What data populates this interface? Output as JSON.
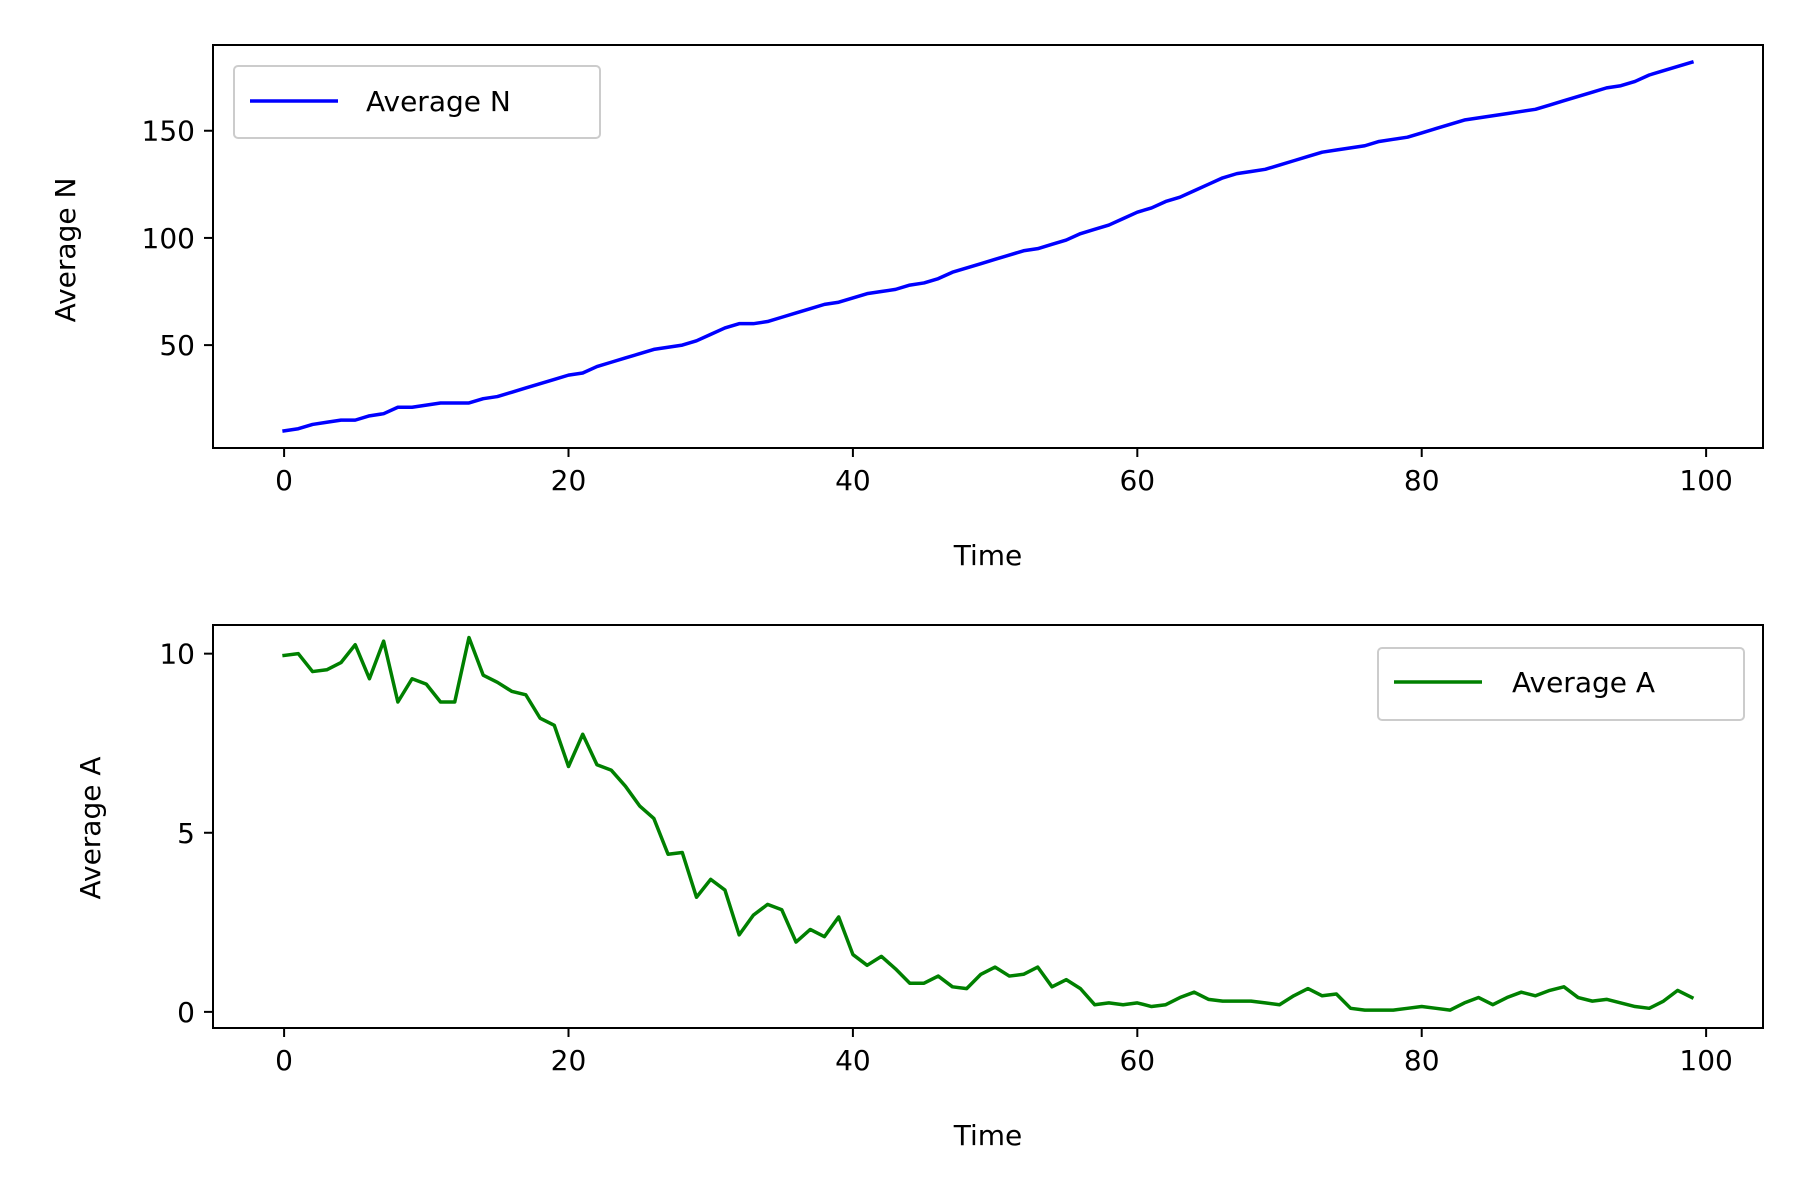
{
  "chart_data": [
    {
      "type": "line",
      "title": "",
      "xlabel": "Time",
      "ylabel": "Average N",
      "xlim": [
        -5,
        104
      ],
      "ylim": [
        2,
        190
      ],
      "xticks": [
        0,
        20,
        40,
        60,
        80,
        100
      ],
      "xtick_labels": [
        "0",
        "20",
        "40",
        "60",
        "80",
        "100"
      ],
      "yticks": [
        50,
        100,
        150
      ],
      "ytick_labels": [
        "50",
        "100",
        "150"
      ],
      "grid": false,
      "legend_position": "upper-left",
      "series": [
        {
          "name": "Average N",
          "color": "#0000ff",
          "x": [
            0,
            1,
            2,
            3,
            4,
            5,
            6,
            7,
            8,
            9,
            10,
            11,
            12,
            13,
            14,
            15,
            16,
            17,
            18,
            19,
            20,
            21,
            22,
            23,
            24,
            25,
            26,
            27,
            28,
            29,
            30,
            31,
            32,
            33,
            34,
            35,
            36,
            37,
            38,
            39,
            40,
            41,
            42,
            43,
            44,
            45,
            46,
            47,
            48,
            49,
            50,
            51,
            52,
            53,
            54,
            55,
            56,
            57,
            58,
            59,
            60,
            61,
            62,
            63,
            64,
            65,
            66,
            67,
            68,
            69,
            70,
            71,
            72,
            73,
            74,
            75,
            76,
            77,
            78,
            79,
            80,
            81,
            82,
            83,
            84,
            85,
            86,
            87,
            88,
            89,
            90,
            91,
            92,
            93,
            94,
            95,
            96,
            97,
            98,
            99
          ],
          "values": [
            10,
            11,
            13,
            14,
            15,
            15,
            17,
            18,
            21,
            21,
            22,
            23,
            23,
            23,
            25,
            26,
            28,
            30,
            32,
            34,
            36,
            37,
            40,
            42,
            44,
            46,
            48,
            49,
            50,
            52,
            55,
            58,
            60,
            60,
            61,
            63,
            65,
            67,
            69,
            70,
            72,
            74,
            75,
            76,
            78,
            79,
            81,
            84,
            86,
            88,
            90,
            92,
            94,
            95,
            97,
            99,
            102,
            104,
            106,
            109,
            112,
            114,
            117,
            119,
            122,
            125,
            128,
            130,
            131,
            132,
            134,
            136,
            138,
            140,
            141,
            142,
            143,
            145,
            146,
            147,
            149,
            151,
            153,
            155,
            156,
            157,
            158,
            159,
            160,
            162,
            164,
            166,
            168,
            170,
            171,
            173,
            176,
            178,
            180,
            182
          ]
        }
      ]
    },
    {
      "type": "line",
      "title": "",
      "xlabel": "Time",
      "ylabel": "Average A",
      "xlim": [
        -5,
        104
      ],
      "ylim": [
        -0.45,
        10.8
      ],
      "xticks": [
        0,
        20,
        40,
        60,
        80,
        100
      ],
      "xtick_labels": [
        "0",
        "20",
        "40",
        "60",
        "80",
        "100"
      ],
      "yticks": [
        0,
        5,
        10
      ],
      "ytick_labels": [
        "0",
        "5",
        "10"
      ],
      "grid": false,
      "legend_position": "upper-right",
      "series": [
        {
          "name": "Average A",
          "color": "#008000",
          "x": [
            0,
            1,
            2,
            3,
            4,
            5,
            6,
            7,
            8,
            9,
            10,
            11,
            12,
            13,
            14,
            15,
            16,
            17,
            18,
            19,
            20,
            21,
            22,
            23,
            24,
            25,
            26,
            27,
            28,
            29,
            30,
            31,
            32,
            33,
            34,
            35,
            36,
            37,
            38,
            39,
            40,
            41,
            42,
            43,
            44,
            45,
            46,
            47,
            48,
            49,
            50,
            51,
            52,
            53,
            54,
            55,
            56,
            57,
            58,
            59,
            60,
            61,
            62,
            63,
            64,
            65,
            66,
            67,
            68,
            69,
            70,
            71,
            72,
            73,
            74,
            75,
            76,
            77,
            78,
            79,
            80,
            81,
            82,
            83,
            84,
            85,
            86,
            87,
            88,
            89,
            90,
            91,
            92,
            93,
            94,
            95,
            96,
            97,
            98,
            99
          ],
          "values": [
            9.95,
            10.0,
            9.5,
            9.55,
            9.75,
            10.25,
            9.3,
            10.35,
            8.65,
            9.3,
            9.15,
            8.65,
            8.65,
            10.45,
            9.4,
            9.2,
            8.95,
            8.85,
            8.2,
            8.0,
            6.85,
            7.75,
            6.9,
            6.75,
            6.3,
            5.75,
            5.4,
            4.4,
            4.45,
            3.2,
            3.7,
            3.4,
            2.15,
            2.7,
            3.0,
            2.85,
            1.95,
            2.3,
            2.1,
            2.65,
            1.6,
            1.3,
            1.55,
            1.2,
            0.8,
            0.8,
            1.0,
            0.7,
            0.65,
            1.05,
            1.25,
            1.0,
            1.05,
            1.25,
            0.7,
            0.9,
            0.65,
            0.2,
            0.25,
            0.2,
            0.25,
            0.15,
            0.2,
            0.4,
            0.55,
            0.35,
            0.3,
            0.3,
            0.3,
            0.25,
            0.2,
            0.45,
            0.65,
            0.45,
            0.5,
            0.1,
            0.05,
            0.05,
            0.05,
            0.1,
            0.15,
            0.1,
            0.05,
            0.25,
            0.4,
            0.2,
            0.4,
            0.55,
            0.45,
            0.6,
            0.7,
            0.4,
            0.3,
            0.35,
            0.25,
            0.15,
            0.1,
            0.3,
            0.6,
            0.4
          ]
        }
      ]
    }
  ]
}
